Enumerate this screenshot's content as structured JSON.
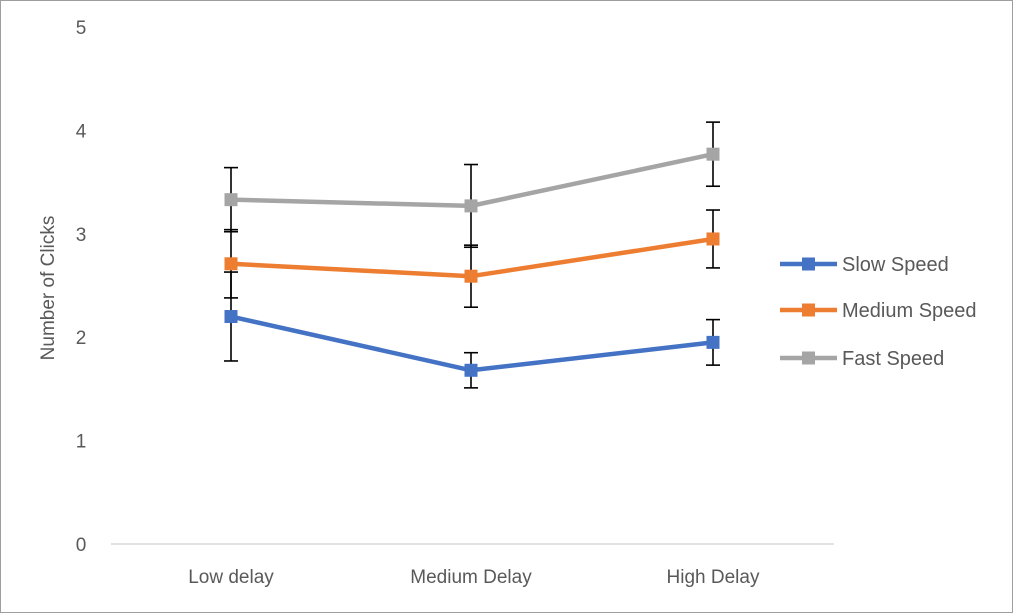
{
  "chart_data": {
    "type": "line",
    "title": "",
    "xlabel": "",
    "ylabel": "Number of Clicks",
    "ylim": [
      0,
      5
    ],
    "yticks": [
      0,
      1,
      2,
      3,
      4,
      5
    ],
    "grid": false,
    "legend_position": "right",
    "categories": [
      "Low delay",
      "Medium Delay",
      "High Delay"
    ],
    "series": [
      {
        "name": "Slow Speed",
        "color": "#4472C4",
        "values": [
          2.2,
          1.68,
          1.95
        ],
        "error": [
          0.43,
          0.17,
          0.22
        ],
        "marker": "square"
      },
      {
        "name": "Medium Speed",
        "color": "#ED7D31",
        "values": [
          2.71,
          2.59,
          2.95
        ],
        "error": [
          0.33,
          0.3,
          0.28
        ],
        "marker": "square"
      },
      {
        "name": "Fast Speed",
        "color": "#A5A5A5",
        "values": [
          3.33,
          3.27,
          3.77
        ],
        "error": [
          0.31,
          0.4,
          0.31
        ],
        "marker": "square"
      }
    ]
  }
}
